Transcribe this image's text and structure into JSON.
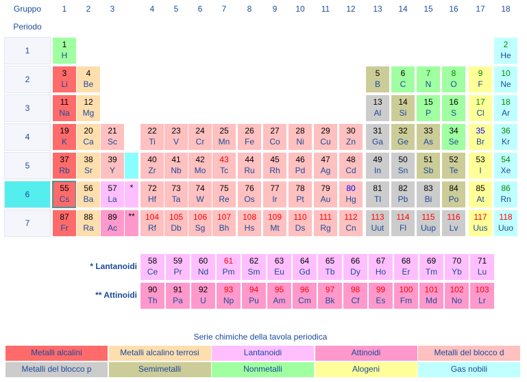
{
  "headers": {
    "gruppo": "Gruppo",
    "periodo": "Periodo",
    "groups": [
      "1",
      "2",
      "3",
      "4",
      "5",
      "6",
      "7",
      "8",
      "9",
      "10",
      "11",
      "12",
      "13",
      "14",
      "15",
      "16",
      "17",
      "18"
    ],
    "periods": [
      "1",
      "2",
      "3",
      "4",
      "5",
      "6",
      "7"
    ]
  },
  "colors": {
    "alk": "#ff6b6b",
    "ae": "#ffdead",
    "lan": "#ffbfff",
    "act": "#ff99cc",
    "tm": "#ffc0c0",
    "pm": "#cccccc",
    "met": "#cccc99",
    "nm": "#a0ffa0",
    "hal": "#ffff99",
    "ng": "#c0ffff",
    "blank": "#ccffff",
    "period6": "#55eeee",
    "row5": "#88ffff",
    "row6": "#33eeee"
  },
  "number_colors": {
    "default": "#000000",
    "red": "#ff0000",
    "blue": "#0000ff",
    "green": "#008800"
  },
  "elements": [
    {
      "n": "1",
      "s": "H",
      "cat": "nm",
      "p": 1,
      "g": 1,
      "nc": "default"
    },
    {
      "n": "2",
      "s": "He",
      "cat": "ng",
      "p": 1,
      "g": 18,
      "nc": "green"
    },
    {
      "n": "3",
      "s": "Li",
      "cat": "alk",
      "p": 2,
      "g": 1,
      "nc": "default"
    },
    {
      "n": "4",
      "s": "Be",
      "cat": "ae",
      "p": 2,
      "g": 2,
      "nc": "default"
    },
    {
      "n": "5",
      "s": "B",
      "cat": "met",
      "p": 2,
      "g": 13,
      "nc": "default"
    },
    {
      "n": "6",
      "s": "C",
      "cat": "nm",
      "p": 2,
      "g": 14,
      "nc": "default"
    },
    {
      "n": "7",
      "s": "N",
      "cat": "nm",
      "p": 2,
      "g": 15,
      "nc": "green"
    },
    {
      "n": "8",
      "s": "O",
      "cat": "nm",
      "p": 2,
      "g": 16,
      "nc": "green"
    },
    {
      "n": "9",
      "s": "F",
      "cat": "hal",
      "p": 2,
      "g": 17,
      "nc": "green"
    },
    {
      "n": "10",
      "s": "Ne",
      "cat": "ng",
      "p": 2,
      "g": 18,
      "nc": "green"
    },
    {
      "n": "11",
      "s": "Na",
      "cat": "alk",
      "p": 3,
      "g": 1,
      "nc": "default"
    },
    {
      "n": "12",
      "s": "Mg",
      "cat": "ae",
      "p": 3,
      "g": 2,
      "nc": "default"
    },
    {
      "n": "13",
      "s": "Al",
      "cat": "pm",
      "p": 3,
      "g": 13,
      "nc": "default"
    },
    {
      "n": "14",
      "s": "Si",
      "cat": "met",
      "p": 3,
      "g": 14,
      "nc": "default"
    },
    {
      "n": "15",
      "s": "P",
      "cat": "nm",
      "p": 3,
      "g": 15,
      "nc": "default"
    },
    {
      "n": "16",
      "s": "S",
      "cat": "nm",
      "p": 3,
      "g": 16,
      "nc": "default"
    },
    {
      "n": "17",
      "s": "Cl",
      "cat": "hal",
      "p": 3,
      "g": 17,
      "nc": "green"
    },
    {
      "n": "18",
      "s": "Ar",
      "cat": "ng",
      "p": 3,
      "g": 18,
      "nc": "green"
    },
    {
      "n": "19",
      "s": "K",
      "cat": "alk",
      "p": 4,
      "g": 1,
      "nc": "default"
    },
    {
      "n": "20",
      "s": "Ca",
      "cat": "ae",
      "p": 4,
      "g": 2,
      "nc": "default"
    },
    {
      "n": "21",
      "s": "Sc",
      "cat": "tm",
      "p": 4,
      "g": 3,
      "nc": "default"
    },
    {
      "n": "22",
      "s": "Ti",
      "cat": "tm",
      "p": 4,
      "g": 4,
      "nc": "default"
    },
    {
      "n": "23",
      "s": "V",
      "cat": "tm",
      "p": 4,
      "g": 5,
      "nc": "default"
    },
    {
      "n": "24",
      "s": "Cr",
      "cat": "tm",
      "p": 4,
      "g": 6,
      "nc": "default"
    },
    {
      "n": "25",
      "s": "Mn",
      "cat": "tm",
      "p": 4,
      "g": 7,
      "nc": "default"
    },
    {
      "n": "26",
      "s": "Fe",
      "cat": "tm",
      "p": 4,
      "g": 8,
      "nc": "default"
    },
    {
      "n": "27",
      "s": "Co",
      "cat": "tm",
      "p": 4,
      "g": 9,
      "nc": "default"
    },
    {
      "n": "28",
      "s": "Ni",
      "cat": "tm",
      "p": 4,
      "g": 10,
      "nc": "default"
    },
    {
      "n": "29",
      "s": "Cu",
      "cat": "tm",
      "p": 4,
      "g": 11,
      "nc": "default"
    },
    {
      "n": "30",
      "s": "Zn",
      "cat": "tm",
      "p": 4,
      "g": 12,
      "nc": "default"
    },
    {
      "n": "31",
      "s": "Ga",
      "cat": "pm",
      "p": 4,
      "g": 13,
      "nc": "default"
    },
    {
      "n": "32",
      "s": "Ge",
      "cat": "met",
      "p": 4,
      "g": 14,
      "nc": "default"
    },
    {
      "n": "33",
      "s": "As",
      "cat": "met",
      "p": 4,
      "g": 15,
      "nc": "default"
    },
    {
      "n": "34",
      "s": "Se",
      "cat": "nm",
      "p": 4,
      "g": 16,
      "nc": "default"
    },
    {
      "n": "35",
      "s": "Br",
      "cat": "hal",
      "p": 4,
      "g": 17,
      "nc": "blue"
    },
    {
      "n": "36",
      "s": "Kr",
      "cat": "ng",
      "p": 4,
      "g": 18,
      "nc": "green"
    },
    {
      "n": "37",
      "s": "Rb",
      "cat": "alk",
      "p": 5,
      "g": 1,
      "nc": "default"
    },
    {
      "n": "38",
      "s": "Sr",
      "cat": "ae",
      "p": 5,
      "g": 2,
      "nc": "default"
    },
    {
      "n": "39",
      "s": "Y",
      "cat": "tm",
      "p": 5,
      "g": 3,
      "nc": "default"
    },
    {
      "n": "40",
      "s": "Zr",
      "cat": "tm",
      "p": 5,
      "g": 4,
      "nc": "default"
    },
    {
      "n": "41",
      "s": "Nb",
      "cat": "tm",
      "p": 5,
      "g": 5,
      "nc": "default"
    },
    {
      "n": "42",
      "s": "Mo",
      "cat": "tm",
      "p": 5,
      "g": 6,
      "nc": "default"
    },
    {
      "n": "43",
      "s": "Tc",
      "cat": "tm",
      "p": 5,
      "g": 7,
      "nc": "red"
    },
    {
      "n": "44",
      "s": "Ru",
      "cat": "tm",
      "p": 5,
      "g": 8,
      "nc": "default"
    },
    {
      "n": "45",
      "s": "Rh",
      "cat": "tm",
      "p": 5,
      "g": 9,
      "nc": "default"
    },
    {
      "n": "46",
      "s": "Pd",
      "cat": "tm",
      "p": 5,
      "g": 10,
      "nc": "default"
    },
    {
      "n": "47",
      "s": "Ag",
      "cat": "tm",
      "p": 5,
      "g": 11,
      "nc": "default"
    },
    {
      "n": "48",
      "s": "Cd",
      "cat": "tm",
      "p": 5,
      "g": 12,
      "nc": "default"
    },
    {
      "n": "49",
      "s": "In",
      "cat": "pm",
      "p": 5,
      "g": 13,
      "nc": "default"
    },
    {
      "n": "50",
      "s": "Sn",
      "cat": "pm",
      "p": 5,
      "g": 14,
      "nc": "default"
    },
    {
      "n": "51",
      "s": "Sb",
      "cat": "met",
      "p": 5,
      "g": 15,
      "nc": "default"
    },
    {
      "n": "52",
      "s": "Te",
      "cat": "met",
      "p": 5,
      "g": 16,
      "nc": "default"
    },
    {
      "n": "53",
      "s": "I",
      "cat": "hal",
      "p": 5,
      "g": 17,
      "nc": "default"
    },
    {
      "n": "54",
      "s": "Xe",
      "cat": "ng",
      "p": 5,
      "g": 18,
      "nc": "green"
    },
    {
      "n": "55",
      "s": "Cs",
      "cat": "alk",
      "p": 6,
      "g": 1,
      "nc": "default"
    },
    {
      "n": "56",
      "s": "Ba",
      "cat": "ae",
      "p": 6,
      "g": 2,
      "nc": "default"
    },
    {
      "n": "57",
      "s": "La",
      "cat": "lan",
      "p": 6,
      "g": 3,
      "nc": "default"
    },
    {
      "n": "72",
      "s": "Hf",
      "cat": "tm",
      "p": 6,
      "g": 4,
      "nc": "default"
    },
    {
      "n": "73",
      "s": "Ta",
      "cat": "tm",
      "p": 6,
      "g": 5,
      "nc": "default"
    },
    {
      "n": "74",
      "s": "W",
      "cat": "tm",
      "p": 6,
      "g": 6,
      "nc": "default"
    },
    {
      "n": "75",
      "s": "Re",
      "cat": "tm",
      "p": 6,
      "g": 7,
      "nc": "default"
    },
    {
      "n": "76",
      "s": "Os",
      "cat": "tm",
      "p": 6,
      "g": 8,
      "nc": "default"
    },
    {
      "n": "77",
      "s": "Ir",
      "cat": "tm",
      "p": 6,
      "g": 9,
      "nc": "default"
    },
    {
      "n": "78",
      "s": "Pt",
      "cat": "tm",
      "p": 6,
      "g": 10,
      "nc": "default"
    },
    {
      "n": "79",
      "s": "Au",
      "cat": "tm",
      "p": 6,
      "g": 11,
      "nc": "default"
    },
    {
      "n": "80",
      "s": "Hg",
      "cat": "tm",
      "p": 6,
      "g": 12,
      "nc": "blue"
    },
    {
      "n": "81",
      "s": "Tl",
      "cat": "pm",
      "p": 6,
      "g": 13,
      "nc": "default"
    },
    {
      "n": "82",
      "s": "Pb",
      "cat": "pm",
      "p": 6,
      "g": 14,
      "nc": "default"
    },
    {
      "n": "83",
      "s": "Bi",
      "cat": "pm",
      "p": 6,
      "g": 15,
      "nc": "default"
    },
    {
      "n": "84",
      "s": "Po",
      "cat": "met",
      "p": 6,
      "g": 16,
      "nc": "default"
    },
    {
      "n": "85",
      "s": "At",
      "cat": "hal",
      "p": 6,
      "g": 17,
      "nc": "default"
    },
    {
      "n": "86",
      "s": "Rn",
      "cat": "ng",
      "p": 6,
      "g": 18,
      "nc": "green"
    },
    {
      "n": "87",
      "s": "Fr",
      "cat": "alk",
      "p": 7,
      "g": 1,
      "nc": "default"
    },
    {
      "n": "88",
      "s": "Ra",
      "cat": "ae",
      "p": 7,
      "g": 2,
      "nc": "default"
    },
    {
      "n": "89",
      "s": "Ac",
      "cat": "act",
      "p": 7,
      "g": 3,
      "nc": "default"
    },
    {
      "n": "104",
      "s": "Rf",
      "cat": "tm",
      "p": 7,
      "g": 4,
      "nc": "red"
    },
    {
      "n": "105",
      "s": "Db",
      "cat": "tm",
      "p": 7,
      "g": 5,
      "nc": "red"
    },
    {
      "n": "106",
      "s": "Sg",
      "cat": "tm",
      "p": 7,
      "g": 6,
      "nc": "red"
    },
    {
      "n": "107",
      "s": "Bh",
      "cat": "tm",
      "p": 7,
      "g": 7,
      "nc": "red"
    },
    {
      "n": "108",
      "s": "Hs",
      "cat": "tm",
      "p": 7,
      "g": 8,
      "nc": "red"
    },
    {
      "n": "109",
      "s": "Mt",
      "cat": "tm",
      "p": 7,
      "g": 9,
      "nc": "red"
    },
    {
      "n": "110",
      "s": "Ds",
      "cat": "tm",
      "p": 7,
      "g": 10,
      "nc": "red"
    },
    {
      "n": "111",
      "s": "Rg",
      "cat": "tm",
      "p": 7,
      "g": 11,
      "nc": "red"
    },
    {
      "n": "112",
      "s": "Cn",
      "cat": "tm",
      "p": 7,
      "g": 12,
      "nc": "red"
    },
    {
      "n": "113",
      "s": "Uut",
      "cat": "pm",
      "p": 7,
      "g": 13,
      "nc": "red"
    },
    {
      "n": "114",
      "s": "Fl",
      "cat": "pm",
      "p": 7,
      "g": 14,
      "nc": "red"
    },
    {
      "n": "115",
      "s": "Uup",
      "cat": "pm",
      "p": 7,
      "g": 15,
      "nc": "red"
    },
    {
      "n": "116",
      "s": "Lv",
      "cat": "pm",
      "p": 7,
      "g": 16,
      "nc": "red"
    },
    {
      "n": "117",
      "s": "Uus",
      "cat": "hal",
      "p": 7,
      "g": 17,
      "nc": "red"
    },
    {
      "n": "118",
      "s": "Uuo",
      "cat": "ng",
      "p": 7,
      "g": 18,
      "nc": "red"
    }
  ],
  "markers": {
    "p6": "*",
    "p7": "**"
  },
  "lanthanoids": {
    "label": "* Lantanoidi",
    "items": [
      {
        "n": "58",
        "s": "Ce",
        "nc": "default"
      },
      {
        "n": "59",
        "s": "Pr",
        "nc": "default"
      },
      {
        "n": "60",
        "s": "Nd",
        "nc": "default"
      },
      {
        "n": "61",
        "s": "Pm",
        "nc": "red"
      },
      {
        "n": "62",
        "s": "Sm",
        "nc": "default"
      },
      {
        "n": "63",
        "s": "Eu",
        "nc": "default"
      },
      {
        "n": "64",
        "s": "Gd",
        "nc": "default"
      },
      {
        "n": "65",
        "s": "Tb",
        "nc": "default"
      },
      {
        "n": "66",
        "s": "Dy",
        "nc": "default"
      },
      {
        "n": "67",
        "s": "Ho",
        "nc": "default"
      },
      {
        "n": "68",
        "s": "Er",
        "nc": "default"
      },
      {
        "n": "69",
        "s": "Tm",
        "nc": "default"
      },
      {
        "n": "70",
        "s": "Yb",
        "nc": "default"
      },
      {
        "n": "71",
        "s": "Lu",
        "nc": "default"
      }
    ]
  },
  "actinoids": {
    "label": "** Attinoidi",
    "items": [
      {
        "n": "90",
        "s": "Th",
        "nc": "default"
      },
      {
        "n": "91",
        "s": "Pa",
        "nc": "default"
      },
      {
        "n": "92",
        "s": "U",
        "nc": "default"
      },
      {
        "n": "93",
        "s": "Np",
        "nc": "red"
      },
      {
        "n": "94",
        "s": "Pu",
        "nc": "red"
      },
      {
        "n": "95",
        "s": "Am",
        "nc": "red"
      },
      {
        "n": "96",
        "s": "Cm",
        "nc": "red"
      },
      {
        "n": "97",
        "s": "Bk",
        "nc": "red"
      },
      {
        "n": "98",
        "s": "Cf",
        "nc": "red"
      },
      {
        "n": "99",
        "s": "Es",
        "nc": "red"
      },
      {
        "n": "100",
        "s": "Fm",
        "nc": "red"
      },
      {
        "n": "101",
        "s": "Md",
        "nc": "red"
      },
      {
        "n": "102",
        "s": "No",
        "nc": "red"
      },
      {
        "n": "103",
        "s": "Lr",
        "nc": "red"
      }
    ]
  },
  "legend": {
    "title": "Serie chimiche della tavola periodica",
    "items": [
      {
        "label": "Metalli alcalini",
        "cat": "alk"
      },
      {
        "label": "Metalli alcalino terrosi",
        "cat": "ae"
      },
      {
        "label": "Lantanoidi",
        "cat": "lan"
      },
      {
        "label": "Attinoidi",
        "cat": "act"
      },
      {
        "label": "Metalli del blocco d",
        "cat": "tm"
      },
      {
        "label": "Metalli del blocco p",
        "cat": "pm"
      },
      {
        "label": "Semimetalli",
        "cat": "met"
      },
      {
        "label": "Nonmetalli",
        "cat": "nm"
      },
      {
        "label": "Alogeni",
        "cat": "hal"
      },
      {
        "label": "Gas nobili",
        "cat": "ng"
      }
    ]
  }
}
